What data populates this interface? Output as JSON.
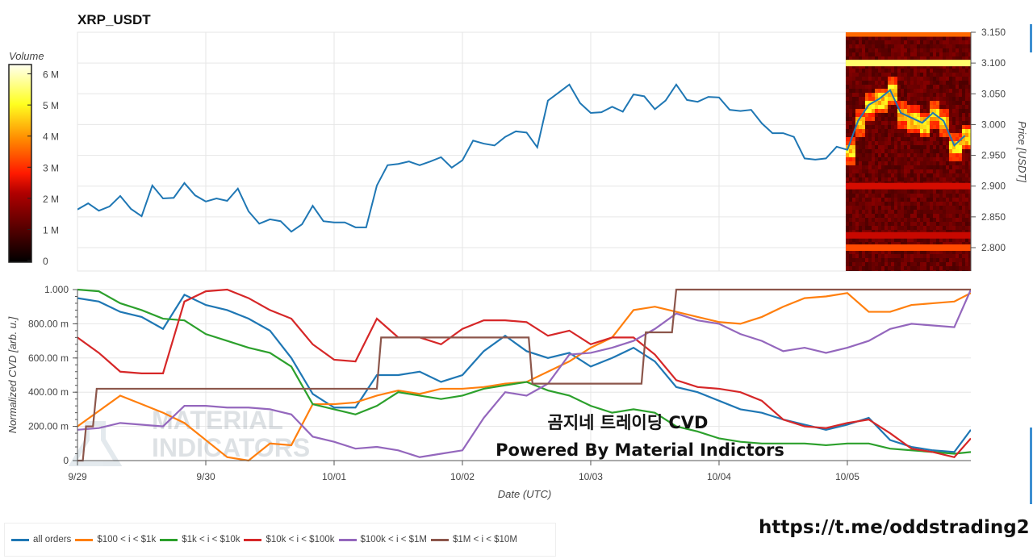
{
  "title": "XRP_USDT",
  "overlay": {
    "line1": "곰지네 트레이딩 CVD",
    "line2": "Powered By Material Indictors",
    "link": "https://t.me/oddstrading2",
    "watermark_line1": "MATERIAL",
    "watermark_line2": "INDICATORS"
  },
  "chart_data": [
    {
      "type": "line",
      "name": "price",
      "title": "XRP_USDT",
      "ylabel": "Price [USDT]",
      "ylim": [
        2.762,
        3.15
      ],
      "yticks": [
        "2.800",
        "2.850",
        "2.900",
        "2.950",
        "3.000",
        "3.050",
        "3.100",
        "3.150"
      ],
      "x_hours_start": 0,
      "x_hours_step": 2,
      "color": "#1f77b4",
      "values": [
        2.862,
        2.872,
        2.86,
        2.867,
        2.884,
        2.863,
        2.851,
        2.901,
        2.88,
        2.881,
        2.905,
        2.885,
        2.875,
        2.88,
        2.876,
        2.896,
        2.859,
        2.839,
        2.846,
        2.843,
        2.826,
        2.838,
        2.868,
        2.843,
        2.841,
        2.841,
        2.833,
        2.833,
        2.901,
        2.934,
        2.936,
        2.94,
        2.934,
        2.94,
        2.947,
        2.93,
        2.942,
        2.974,
        2.969,
        2.966,
        2.98,
        2.989,
        2.987,
        2.963,
        3.039,
        3.052,
        3.065,
        3.035,
        3.019,
        3.02,
        3.029,
        3.021,
        3.049,
        3.046,
        3.025,
        3.039,
        3.065,
        3.04,
        3.037,
        3.045,
        3.044,
        3.024,
        3.022,
        3.024,
        3.002,
        2.986,
        2.986,
        2.98,
        2.945,
        2.943,
        2.945,
        2.964,
        2.959,
        3.006,
        3.032,
        3.042,
        3.056,
        3.019,
        3.011,
        3.003,
        3.019,
        3.006,
        2.966,
        2.982
      ],
      "heatmap": {
        "x_hours_range": [
          143.7,
          167.1
        ],
        "colorbar_label": "Volume",
        "colorbar_ticks": [
          "0",
          "1 M",
          "2 M",
          "3 M",
          "4 M",
          "5 M",
          "6 M"
        ],
        "colorbar_max": 6300000,
        "bands": [
          {
            "price": 3.148,
            "volume": 3600000
          },
          {
            "price": 3.1,
            "volume": 5500000
          },
          {
            "price": 2.9,
            "volume": 2500000
          },
          {
            "price": 2.82,
            "volume": 2400000
          },
          {
            "price": 2.8,
            "volume": 3300000
          }
        ]
      }
    },
    {
      "type": "line",
      "name": "cvd",
      "xlabel": "Date (UTC)",
      "ylabel": "Normalized CVD [arb. u.]",
      "ylim": [
        0,
        1
      ],
      "yticks": [
        "0",
        "200.00 m",
        "400.00 m",
        "600.00 m",
        "800.00 m",
        "1.000"
      ],
      "xticks": [
        "9/29",
        "9/30",
        "10/01",
        "10/02",
        "10/03",
        "10/04",
        "10/05"
      ],
      "xlim_hours": [
        0,
        167.1
      ],
      "x_hours_step": 4,
      "series": [
        {
          "name": "all orders",
          "color": "#1f77b4",
          "values": [
            0.95,
            0.93,
            0.87,
            0.84,
            0.77,
            0.97,
            0.91,
            0.88,
            0.83,
            0.76,
            0.6,
            0.39,
            0.31,
            0.31,
            0.5,
            0.5,
            0.52,
            0.46,
            0.5,
            0.64,
            0.73,
            0.64,
            0.6,
            0.63,
            0.55,
            0.6,
            0.66,
            0.58,
            0.43,
            0.4,
            0.35,
            0.3,
            0.28,
            0.24,
            0.21,
            0.18,
            0.21,
            0.25,
            0.12,
            0.08,
            0.06,
            0.05,
            0.18
          ]
        },
        {
          "name": "$100 < i < $1k",
          "color": "#ff7f0e",
          "values": [
            0.2,
            0.29,
            0.38,
            0.33,
            0.28,
            0.22,
            0.12,
            0.02,
            0.0,
            0.1,
            0.09,
            0.33,
            0.33,
            0.34,
            0.38,
            0.41,
            0.39,
            0.42,
            0.42,
            0.43,
            0.45,
            0.46,
            0.52,
            0.58,
            0.66,
            0.72,
            0.88,
            0.9,
            0.87,
            0.84,
            0.81,
            0.8,
            0.84,
            0.9,
            0.95,
            0.96,
            0.98,
            0.87,
            0.87,
            0.91,
            0.92,
            0.93,
            0.98
          ]
        },
        {
          "name": "$1k < i < $10k",
          "color": "#2ca02c",
          "values": [
            1.0,
            0.99,
            0.92,
            0.88,
            0.83,
            0.82,
            0.74,
            0.7,
            0.66,
            0.63,
            0.55,
            0.33,
            0.3,
            0.27,
            0.32,
            0.4,
            0.38,
            0.36,
            0.38,
            0.42,
            0.44,
            0.46,
            0.41,
            0.38,
            0.32,
            0.28,
            0.3,
            0.28,
            0.2,
            0.17,
            0.13,
            0.11,
            0.1,
            0.1,
            0.1,
            0.09,
            0.1,
            0.1,
            0.07,
            0.06,
            0.05,
            0.04,
            0.05
          ]
        },
        {
          "name": "$10k < i < $100k",
          "color": "#d62728",
          "values": [
            0.72,
            0.63,
            0.52,
            0.51,
            0.51,
            0.93,
            0.99,
            1.0,
            0.95,
            0.88,
            0.83,
            0.68,
            0.59,
            0.58,
            0.83,
            0.72,
            0.72,
            0.68,
            0.77,
            0.82,
            0.82,
            0.81,
            0.73,
            0.76,
            0.68,
            0.72,
            0.72,
            0.62,
            0.47,
            0.43,
            0.42,
            0.4,
            0.35,
            0.24,
            0.2,
            0.19,
            0.22,
            0.24,
            0.16,
            0.07,
            0.05,
            0.02,
            0.13
          ]
        },
        {
          "name": "$100k < i < $1M",
          "color": "#9467bd",
          "values": [
            0.18,
            0.19,
            0.22,
            0.21,
            0.2,
            0.32,
            0.32,
            0.31,
            0.31,
            0.3,
            0.27,
            0.14,
            0.11,
            0.07,
            0.08,
            0.06,
            0.02,
            0.04,
            0.06,
            0.25,
            0.4,
            0.38,
            0.45,
            0.62,
            0.63,
            0.66,
            0.7,
            0.77,
            0.86,
            0.82,
            0.8,
            0.74,
            0.7,
            0.64,
            0.66,
            0.63,
            0.66,
            0.7,
            0.77,
            0.8,
            0.79,
            0.78,
            1.0
          ]
        },
        {
          "name": "$1M < i < $10M",
          "color": "#8c564b",
          "points": [
            [
              0,
              0
            ],
            [
              1.0,
              0
            ],
            [
              1.6,
              0.2
            ],
            [
              2.9,
              0.2
            ],
            [
              3.6,
              0.42
            ],
            [
              56,
              0.42
            ],
            [
              56.8,
              0.72
            ],
            [
              84.4,
              0.72
            ],
            [
              85.1,
              0.45
            ],
            [
              105.5,
              0.45
            ],
            [
              106.3,
              0.75
            ],
            [
              111.2,
              0.75
            ],
            [
              112,
              1.0
            ],
            [
              167.1,
              1.0
            ]
          ]
        }
      ],
      "legend_position": "bottom-left"
    }
  ]
}
